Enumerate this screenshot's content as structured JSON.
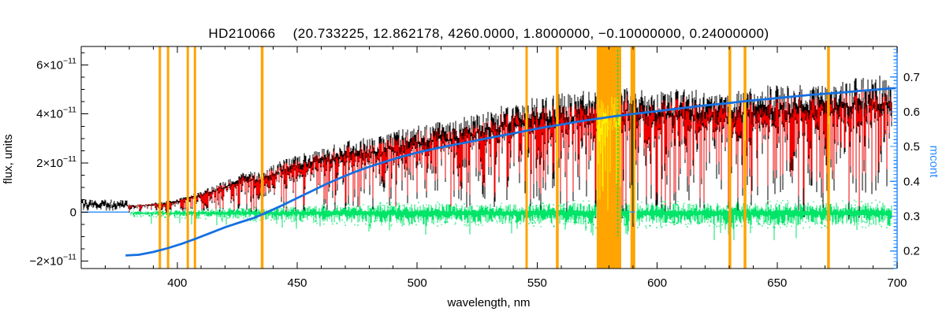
{
  "window": {
    "background": "#ffffff"
  },
  "chart_data": {
    "type": "line",
    "title_star": "HD210066",
    "title_params": "(20.733225, 12.862178, 4260.0000, 1.8000000, −0.10000000, 0.24000000)",
    "xlabel": "wavelength, nm",
    "ylabel_left": "flux, units",
    "ylabel_right": "mcont",
    "x_range": [
      360,
      700
    ],
    "y_left_range_1e11": [
      -2.304,
      6.752
    ],
    "y_right_range": [
      0.1495,
      0.7878
    ],
    "x_ticks": {
      "major": [
        400,
        450,
        500,
        550,
        600,
        650,
        700
      ],
      "minor_step": 10
    },
    "y_left_ticks": {
      "major": [
        {
          "value": 6,
          "label": "6×10",
          "sup": "−11"
        },
        {
          "value": 4,
          "label": "4×10",
          "sup": "−11"
        },
        {
          "value": 2,
          "label": "2×10",
          "sup": "−11"
        },
        {
          "value": 0,
          "label": "0",
          "sup": ""
        },
        {
          "value": -2,
          "label": "−2×10",
          "sup": "−11"
        }
      ],
      "minor_step": 0.5
    },
    "y_right_ticks": {
      "major": [
        0.2,
        0.3,
        0.4,
        0.5,
        0.6,
        0.7
      ],
      "minor_step": 0.01
    },
    "colors": {
      "black": "#000000",
      "red": "#ee0000",
      "green": "#00e468",
      "yellow": "#fff000",
      "orange": "#ffa400",
      "curve_blue": "#1670e0",
      "axis_blue": "#2a8cff",
      "background": "#ffffff"
    },
    "series": [
      {
        "id": "observed-spectrum",
        "color": "black",
        "axis": "left"
      },
      {
        "id": "processed-spectrum",
        "color": "red",
        "axis": "left"
      },
      {
        "id": "masked-spectrum",
        "color": "yellow",
        "axis": "left"
      },
      {
        "id": "residuals",
        "color": "green",
        "axis": "left"
      },
      {
        "id": "continuum-mcont",
        "color": "curve_blue",
        "axis": "right"
      }
    ],
    "mask_lines_nm": [
      {
        "nm": 392.8,
        "w": 3
      },
      {
        "nm": 396.2,
        "w": 3
      },
      {
        "nm": 404.4,
        "w": 3
      },
      {
        "nm": 407.4,
        "w": 3
      },
      {
        "nm": 435.4,
        "w": 3.5
      },
      {
        "nm": 545.6,
        "w": 3
      },
      {
        "nm": 558.4,
        "w": 3.5
      },
      {
        "nm": 589.9,
        "w": 6
      },
      {
        "nm": 630.3,
        "w": 3.5
      },
      {
        "nm": 636.6,
        "w": 3.5
      },
      {
        "nm": 671.4,
        "w": 3.5
      }
    ],
    "mask_band_nm": [
      574.8,
      585.0
    ],
    "green_spike_nm": 583.6,
    "zero_line_segments_nm": [
      [
        360,
        379.9
      ],
      [
        588.6,
        590.8
      ]
    ],
    "envelope_1e11": [
      [
        360,
        0.32
      ],
      [
        365,
        0.3
      ],
      [
        370,
        0.34
      ],
      [
        374,
        0.28
      ],
      [
        378,
        0.3
      ],
      [
        382,
        0.26
      ],
      [
        386,
        0.3
      ],
      [
        390,
        0.34
      ],
      [
        394,
        0.38
      ],
      [
        398,
        0.45
      ],
      [
        402,
        0.55
      ],
      [
        406,
        0.65
      ],
      [
        410,
        0.78
      ],
      [
        414,
        0.92
      ],
      [
        418,
        1.08
      ],
      [
        422,
        1.22
      ],
      [
        426,
        1.4
      ],
      [
        430,
        1.52
      ],
      [
        434,
        1.45
      ],
      [
        438,
        1.65
      ],
      [
        442,
        1.82
      ],
      [
        446,
        1.98
      ],
      [
        450,
        2.12
      ],
      [
        454,
        2.22
      ],
      [
        458,
        2.28
      ],
      [
        462,
        2.36
      ],
      [
        466,
        2.48
      ],
      [
        470,
        2.58
      ],
      [
        474,
        2.65
      ],
      [
        478,
        2.72
      ],
      [
        482,
        2.72
      ],
      [
        486,
        2.78
      ],
      [
        490,
        2.95
      ],
      [
        494,
        3.05
      ],
      [
        498,
        3.12
      ],
      [
        502,
        3.2
      ],
      [
        506,
        3.28
      ],
      [
        510,
        3.35
      ],
      [
        514,
        3.32
      ],
      [
        518,
        3.45
      ],
      [
        522,
        3.58
      ],
      [
        526,
        3.65
      ],
      [
        530,
        3.75
      ],
      [
        534,
        3.85
      ],
      [
        538,
        3.98
      ],
      [
        542,
        4.08
      ],
      [
        546,
        4.15
      ],
      [
        550,
        4.2
      ],
      [
        555,
        4.26
      ],
      [
        560,
        4.32
      ],
      [
        565,
        4.38
      ],
      [
        570,
        4.42
      ],
      [
        575,
        4.46
      ],
      [
        580,
        4.5
      ],
      [
        585,
        4.55
      ],
      [
        590,
        4.6
      ],
      [
        594,
        4.45
      ],
      [
        598,
        4.35
      ],
      [
        602,
        4.4
      ],
      [
        606,
        4.45
      ],
      [
        610,
        4.48
      ],
      [
        615,
        4.5
      ],
      [
        620,
        4.46
      ],
      [
        625,
        4.4
      ],
      [
        630,
        4.36
      ],
      [
        635,
        4.45
      ],
      [
        640,
        4.55
      ],
      [
        645,
        4.62
      ],
      [
        650,
        4.68
      ],
      [
        655,
        4.58
      ],
      [
        660,
        4.64
      ],
      [
        665,
        4.7
      ],
      [
        670,
        4.74
      ],
      [
        675,
        4.8
      ],
      [
        680,
        4.85
      ],
      [
        685,
        4.9
      ],
      [
        690,
        4.96
      ],
      [
        695,
        5.0
      ],
      [
        700,
        5.06
      ]
    ],
    "absorption_lines": [
      [
        393.4,
        0.82,
        1.1
      ],
      [
        396.9,
        0.78,
        1.0
      ],
      [
        404.6,
        0.5,
        0.6
      ],
      [
        410.3,
        0.55,
        0.8
      ],
      [
        414.0,
        0.4,
        0.5
      ],
      [
        422.7,
        0.58,
        0.8
      ],
      [
        427.0,
        0.45,
        0.6
      ],
      [
        434.0,
        0.68,
        1.0
      ],
      [
        438.3,
        0.5,
        0.7
      ],
      [
        440.5,
        0.45,
        0.5
      ],
      [
        445.0,
        0.42,
        0.5
      ],
      [
        453.0,
        0.4,
        0.5
      ],
      [
        466.0,
        0.38,
        0.5
      ],
      [
        473.0,
        0.4,
        0.5
      ],
      [
        486.1,
        0.72,
        1.0
      ],
      [
        492.0,
        0.4,
        0.5
      ],
      [
        495.7,
        0.42,
        0.5
      ],
      [
        517.3,
        0.55,
        1.2
      ],
      [
        527.0,
        0.52,
        0.8
      ],
      [
        532.8,
        0.45,
        0.6
      ],
      [
        539.0,
        0.4,
        0.5
      ],
      [
        552.8,
        0.45,
        0.6
      ],
      [
        561.0,
        0.4,
        0.5
      ],
      [
        589.9,
        1.13,
        0.45
      ],
      [
        612.2,
        0.5,
        0.5
      ],
      [
        616.5,
        0.45,
        0.5
      ],
      [
        624.0,
        0.48,
        0.5
      ],
      [
        634.0,
        0.42,
        0.5
      ],
      [
        649.9,
        0.45,
        0.5
      ],
      [
        656.3,
        0.72,
        0.9
      ],
      [
        667.0,
        0.4,
        0.4
      ],
      [
        686.7,
        0.5,
        0.6
      ]
    ],
    "mcont_curve": [
      [
        378.5,
        0.187
      ],
      [
        384,
        0.189
      ],
      [
        390,
        0.197
      ],
      [
        396,
        0.208
      ],
      [
        402,
        0.221
      ],
      [
        408,
        0.236
      ],
      [
        414,
        0.252
      ],
      [
        420,
        0.268
      ],
      [
        426,
        0.282
      ],
      [
        432,
        0.295
      ],
      [
        438,
        0.313
      ],
      [
        444,
        0.332
      ],
      [
        450,
        0.352
      ],
      [
        456,
        0.372
      ],
      [
        462,
        0.392
      ],
      [
        468,
        0.41
      ],
      [
        474,
        0.427
      ],
      [
        480,
        0.442
      ],
      [
        486,
        0.455
      ],
      [
        492,
        0.468
      ],
      [
        498,
        0.479
      ],
      [
        504,
        0.489
      ],
      [
        510,
        0.498
      ],
      [
        516,
        0.506
      ],
      [
        522,
        0.514
      ],
      [
        528,
        0.522
      ],
      [
        534,
        0.53
      ],
      [
        540,
        0.538
      ],
      [
        546,
        0.546
      ],
      [
        552,
        0.554
      ],
      [
        558,
        0.561
      ],
      [
        564,
        0.568
      ],
      [
        570,
        0.575
      ],
      [
        576,
        0.581
      ],
      [
        582,
        0.587
      ],
      [
        588,
        0.592
      ],
      [
        594,
        0.597
      ],
      [
        600,
        0.602
      ],
      [
        606,
        0.607
      ],
      [
        612,
        0.612
      ],
      [
        618,
        0.617
      ],
      [
        624,
        0.621
      ],
      [
        630,
        0.625
      ],
      [
        636,
        0.63
      ],
      [
        642,
        0.634
      ],
      [
        648,
        0.638
      ],
      [
        654,
        0.642
      ],
      [
        660,
        0.646
      ],
      [
        666,
        0.65
      ],
      [
        672,
        0.653
      ],
      [
        678,
        0.656
      ],
      [
        684,
        0.66
      ],
      [
        690,
        0.663
      ],
      [
        695,
        0.666
      ],
      [
        699.5,
        0.668
      ]
    ],
    "green_amplitude": [
      [
        380,
        0.05
      ],
      [
        395,
        0.07
      ],
      [
        410,
        0.1
      ],
      [
        425,
        0.13
      ],
      [
        440,
        0.16
      ],
      [
        455,
        0.19
      ],
      [
        470,
        0.22
      ],
      [
        485,
        0.24
      ],
      [
        500,
        0.25
      ],
      [
        515,
        0.25
      ],
      [
        530,
        0.24
      ],
      [
        545,
        0.24
      ],
      [
        560,
        0.27
      ],
      [
        575,
        0.28
      ],
      [
        590,
        0.28
      ],
      [
        605,
        0.27
      ],
      [
        620,
        0.26
      ],
      [
        635,
        0.28
      ],
      [
        650,
        0.28
      ],
      [
        665,
        0.28
      ],
      [
        680,
        0.27
      ],
      [
        700,
        0.29
      ]
    ],
    "noise_seed": 20733
  }
}
